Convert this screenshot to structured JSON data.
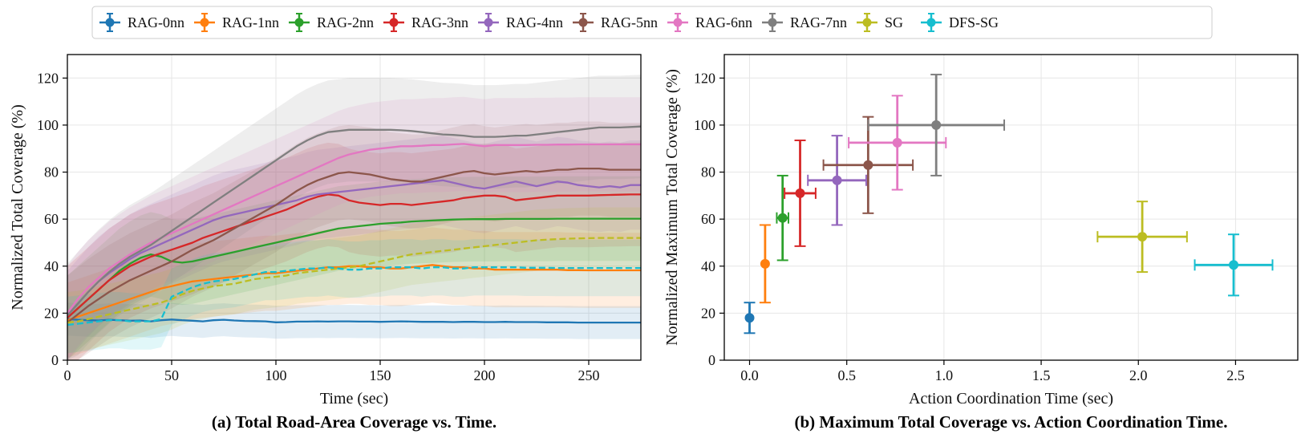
{
  "legend": [
    {
      "name": "RAG-0nn",
      "color": "#1f77b4"
    },
    {
      "name": "RAG-1nn",
      "color": "#ff7f0e"
    },
    {
      "name": "RAG-2nn",
      "color": "#2ca02c"
    },
    {
      "name": "RAG-3nn",
      "color": "#d62728"
    },
    {
      "name": "RAG-4nn",
      "color": "#9467bd"
    },
    {
      "name": "RAG-5nn",
      "color": "#8c564b"
    },
    {
      "name": "RAG-6nn",
      "color": "#e377c2"
    },
    {
      "name": "RAG-7nn",
      "color": "#7f7f7f"
    },
    {
      "name": "SG",
      "color": "#bcbd22"
    },
    {
      "name": "DFS-SG",
      "color": "#17becf"
    }
  ],
  "chart_data": [
    {
      "id": "a",
      "type": "line",
      "caption": "(a) Total Road-Area Coverage vs. Time.",
      "xlabel": "Time (sec)",
      "ylabel": "Normalized Total Coverage (%)",
      "xlim": [
        0,
        275
      ],
      "ylim": [
        0,
        130
      ],
      "xticks": [
        "0",
        "50",
        "100",
        "150",
        "200",
        "250"
      ],
      "yticks": [
        "0",
        "20",
        "40",
        "60",
        "80",
        "100",
        "120"
      ],
      "grid": true,
      "x": [
        0,
        5,
        10,
        15,
        20,
        25,
        30,
        35,
        40,
        45,
        50,
        55,
        60,
        65,
        70,
        75,
        80,
        85,
        90,
        95,
        100,
        105,
        110,
        115,
        120,
        125,
        130,
        135,
        140,
        145,
        150,
        155,
        160,
        165,
        170,
        175,
        180,
        185,
        190,
        195,
        200,
        205,
        210,
        215,
        220,
        225,
        230,
        235,
        240,
        245,
        250,
        255,
        260,
        265,
        270,
        275
      ],
      "series": [
        {
          "name": "RAG-0nn",
          "style": "solid",
          "band": 7,
          "values": [
            17.5,
            17.2,
            17.0,
            16.9,
            17.2,
            17.0,
            16.8,
            16.9,
            16.5,
            17.0,
            17.3,
            17.0,
            16.8,
            16.5,
            17.0,
            17.2,
            16.9,
            16.7,
            16.6,
            16.5,
            16.1,
            16.2,
            16.4,
            16.4,
            16.5,
            16.4,
            16.5,
            16.5,
            16.4,
            16.4,
            16.3,
            16.4,
            16.5,
            16.4,
            16.3,
            16.3,
            16.3,
            16.2,
            16.3,
            16.3,
            16.2,
            16.2,
            16.3,
            16.2,
            16.2,
            16.2,
            16.1,
            16.1,
            16.1,
            16.0,
            16.0,
            16.0,
            16.0,
            16.0,
            16.0,
            16.0
          ]
        },
        {
          "name": "RAG-1nn",
          "style": "solid",
          "band": 16,
          "values": [
            17.0,
            18.5,
            20.0,
            21.5,
            23.0,
            24.5,
            26.0,
            27.5,
            29.0,
            30.5,
            31.5,
            32.5,
            33.5,
            34.0,
            34.5,
            35.0,
            35.5,
            36.0,
            36.5,
            37.0,
            37.0,
            37.5,
            38.0,
            38.5,
            39.0,
            39.5,
            39.5,
            40.0,
            40.0,
            39.5,
            39.5,
            39.0,
            39.0,
            39.5,
            40.0,
            40.5,
            40.0,
            39.5,
            39.5,
            39.0,
            39.0,
            38.5,
            38.5,
            38.5,
            38.5,
            38.5,
            38.5,
            38.5,
            38.3,
            38.3,
            38.2,
            38.2,
            38.2,
            38.2,
            38.2,
            38.2
          ]
        },
        {
          "name": "RAG-2nn",
          "style": "solid",
          "band": 18,
          "values": [
            18.0,
            22.0,
            26.0,
            30.0,
            34.0,
            38.0,
            41.0,
            43.5,
            45.0,
            44.0,
            42.0,
            41.5,
            42.0,
            43.0,
            44.0,
            45.0,
            46.0,
            47.0,
            48.0,
            49.0,
            50.0,
            51.0,
            52.0,
            53.0,
            54.0,
            55.0,
            56.0,
            56.5,
            57.0,
            57.5,
            58.0,
            58.3,
            58.6,
            59.0,
            59.2,
            59.4,
            59.6,
            59.8,
            59.9,
            60.0,
            60.0,
            60.0,
            60.1,
            60.1,
            60.1,
            60.1,
            60.1,
            60.2,
            60.2,
            60.2,
            60.2,
            60.2,
            60.2,
            60.2,
            60.2,
            60.2
          ]
        },
        {
          "name": "RAG-3nn",
          "style": "solid",
          "band": 22,
          "values": [
            18.0,
            22.0,
            26.0,
            30.0,
            34.0,
            37.0,
            40.0,
            42.0,
            44.0,
            45.5,
            47.0,
            48.5,
            50.0,
            52.0,
            53.5,
            55.0,
            56.5,
            58.0,
            59.5,
            61.0,
            62.5,
            64.0,
            66.0,
            68.0,
            69.5,
            70.5,
            70.0,
            68.0,
            67.0,
            66.5,
            66.0,
            66.5,
            66.5,
            66.0,
            66.5,
            67.0,
            67.5,
            68.0,
            69.0,
            69.5,
            70.0,
            70.0,
            69.5,
            68.0,
            68.5,
            69.0,
            69.5,
            70.0,
            70.0,
            70.0,
            70.0,
            70.2,
            70.3,
            70.4,
            70.5,
            70.5
          ]
        },
        {
          "name": "RAG-4nn",
          "style": "solid",
          "band": 19,
          "values": [
            19.0,
            24.0,
            29.0,
            33.5,
            37.0,
            40.0,
            43.0,
            45.5,
            47.5,
            49.5,
            51.5,
            53.5,
            55.5,
            57.5,
            59.5,
            61.0,
            62.0,
            63.0,
            64.0,
            65.0,
            66.0,
            67.0,
            68.0,
            69.5,
            70.5,
            71.0,
            71.5,
            72.0,
            72.5,
            73.0,
            73.5,
            74.0,
            74.5,
            75.0,
            75.5,
            76.0,
            76.5,
            75.5,
            74.5,
            73.5,
            73.0,
            74.0,
            75.0,
            76.0,
            75.0,
            74.0,
            75.0,
            76.0,
            75.5,
            74.5,
            74.0,
            73.5,
            74.0,
            73.5,
            74.5,
            74.5
          ]
        },
        {
          "name": "RAG-5nn",
          "style": "solid",
          "band": 20,
          "values": [
            16.0,
            19.5,
            23.0,
            26.0,
            29.0,
            31.5,
            34.0,
            36.0,
            38.0,
            40.0,
            42.0,
            44.5,
            47.0,
            49.0,
            51.0,
            53.5,
            56.0,
            58.5,
            61.0,
            63.5,
            66.0,
            69.0,
            72.0,
            74.5,
            76.5,
            78.0,
            79.5,
            80.0,
            79.5,
            79.0,
            78.0,
            77.0,
            76.5,
            76.0,
            76.0,
            77.0,
            78.0,
            79.0,
            80.0,
            80.5,
            79.5,
            79.0,
            79.5,
            80.0,
            80.5,
            80.0,
            80.5,
            81.0,
            81.0,
            81.5,
            81.5,
            81.5,
            81.0,
            81.0,
            81.0,
            81.0
          ]
        },
        {
          "name": "RAG-6nn",
          "style": "solid",
          "band": 20,
          "values": [
            20.0,
            26.0,
            31.0,
            35.0,
            39.0,
            42.0,
            45.0,
            47.5,
            50.0,
            52.0,
            54.0,
            56.0,
            58.0,
            60.0,
            62.0,
            64.0,
            66.0,
            68.0,
            70.0,
            72.0,
            74.0,
            76.0,
            78.0,
            80.0,
            82.0,
            84.0,
            86.0,
            87.5,
            88.5,
            89.5,
            90.0,
            90.5,
            91.0,
            91.0,
            91.2,
            91.5,
            91.5,
            91.8,
            92.0,
            91.5,
            91.0,
            91.5,
            91.5,
            91.5,
            91.5,
            91.6,
            91.6,
            91.7,
            91.7,
            91.8,
            91.8,
            91.8,
            91.8,
            91.8,
            91.8,
            91.8
          ]
        },
        {
          "name": "RAG-7nn",
          "style": "solid",
          "band": 22,
          "values": [
            19.0,
            24.0,
            29.0,
            33.5,
            37.5,
            41.0,
            44.0,
            46.5,
            49.0,
            52.0,
            55.0,
            58.0,
            61.0,
            64.0,
            67.0,
            70.0,
            73.0,
            76.0,
            79.0,
            82.0,
            85.0,
            88.0,
            91.0,
            93.5,
            95.5,
            97.0,
            97.5,
            98.0,
            98.0,
            98.0,
            98.0,
            98.0,
            97.8,
            97.5,
            97.0,
            96.5,
            96.0,
            95.8,
            95.5,
            95.0,
            95.0,
            95.0,
            95.2,
            95.5,
            95.5,
            96.0,
            96.5,
            97.0,
            97.5,
            98.0,
            98.5,
            99.0,
            99.0,
            99.0,
            99.2,
            99.4
          ]
        },
        {
          "name": "SG",
          "style": "dashed",
          "band": 13,
          "values": [
            16.0,
            16.5,
            17.5,
            18.5,
            19.5,
            20.5,
            21.5,
            22.5,
            23.5,
            24.5,
            26.0,
            28.0,
            29.5,
            30.5,
            31.5,
            32.0,
            32.5,
            33.5,
            34.5,
            35.0,
            35.5,
            36.0,
            37.0,
            37.5,
            38.0,
            38.5,
            39.0,
            39.5,
            40.0,
            41.0,
            42.0,
            43.0,
            44.0,
            45.0,
            45.5,
            46.0,
            46.5,
            47.0,
            47.5,
            48.0,
            48.5,
            49.0,
            49.5,
            50.0,
            50.5,
            51.0,
            51.3,
            51.5,
            51.7,
            51.8,
            51.9,
            52.0,
            52.0,
            52.0,
            52.0,
            52.0
          ]
        },
        {
          "name": "DFS-SG",
          "style": "dashed",
          "band": 12,
          "values": [
            15.0,
            15.5,
            16.0,
            16.5,
            17.0,
            17.0,
            16.5,
            16.5,
            16.5,
            17.5,
            27.0,
            29.0,
            31.0,
            32.5,
            33.5,
            34.0,
            34.5,
            35.5,
            36.5,
            37.5,
            37.5,
            38.0,
            38.5,
            39.0,
            39.0,
            39.5,
            39.0,
            38.5,
            38.5,
            39.0,
            39.0,
            39.5,
            39.5,
            39.5,
            39.0,
            39.5,
            39.5,
            39.0,
            39.0,
            39.5,
            39.5,
            39.5,
            39.5,
            39.5,
            39.3,
            39.3,
            39.3,
            39.2,
            39.2,
            39.2,
            39.2,
            39.2,
            39.2,
            39.2,
            39.2,
            39.2
          ]
        }
      ]
    },
    {
      "id": "b",
      "type": "scatter",
      "caption": "(b) Maximum Total Coverage vs. Action Coordination Time.",
      "xlabel": "Action Coordination Time (sec)",
      "ylabel": "Normalized Maximum Total Coverage (%)",
      "xlim": [
        -0.13,
        2.82
      ],
      "ylim": [
        0,
        130
      ],
      "xticks": [
        "0.0",
        "0.5",
        "1.0",
        "1.5",
        "2.0",
        "2.5"
      ],
      "yticks": [
        "0",
        "20",
        "40",
        "60",
        "80",
        "100",
        "120"
      ],
      "grid": true,
      "points": [
        {
          "name": "RAG-0nn",
          "x": 0.0,
          "y": 18.0,
          "xerr": 0.0,
          "yerr": 6.5
        },
        {
          "name": "RAG-1nn",
          "x": 0.08,
          "y": 41.0,
          "xerr": 0.0,
          "yerr": 16.5
        },
        {
          "name": "RAG-2nn",
          "x": 0.17,
          "y": 60.5,
          "xerr": 0.03,
          "yerr": 18.0
        },
        {
          "name": "RAG-3nn",
          "x": 0.26,
          "y": 71.0,
          "xerr": 0.08,
          "yerr": 22.5
        },
        {
          "name": "RAG-4nn",
          "x": 0.45,
          "y": 76.5,
          "xerr": 0.15,
          "yerr": 19.0
        },
        {
          "name": "RAG-5nn",
          "x": 0.61,
          "y": 83.0,
          "xerr": 0.23,
          "yerr": 20.5
        },
        {
          "name": "RAG-6nn",
          "x": 0.76,
          "y": 92.5,
          "xerr": 0.25,
          "yerr": 20.0
        },
        {
          "name": "RAG-7nn",
          "x": 0.96,
          "y": 100.0,
          "xerr": 0.35,
          "yerr": 21.5
        },
        {
          "name": "SG",
          "x": 2.02,
          "y": 52.5,
          "xerr": 0.23,
          "yerr": 15.0
        },
        {
          "name": "DFS-SG",
          "x": 2.49,
          "y": 40.5,
          "xerr": 0.2,
          "yerr": 13.0
        }
      ]
    }
  ]
}
